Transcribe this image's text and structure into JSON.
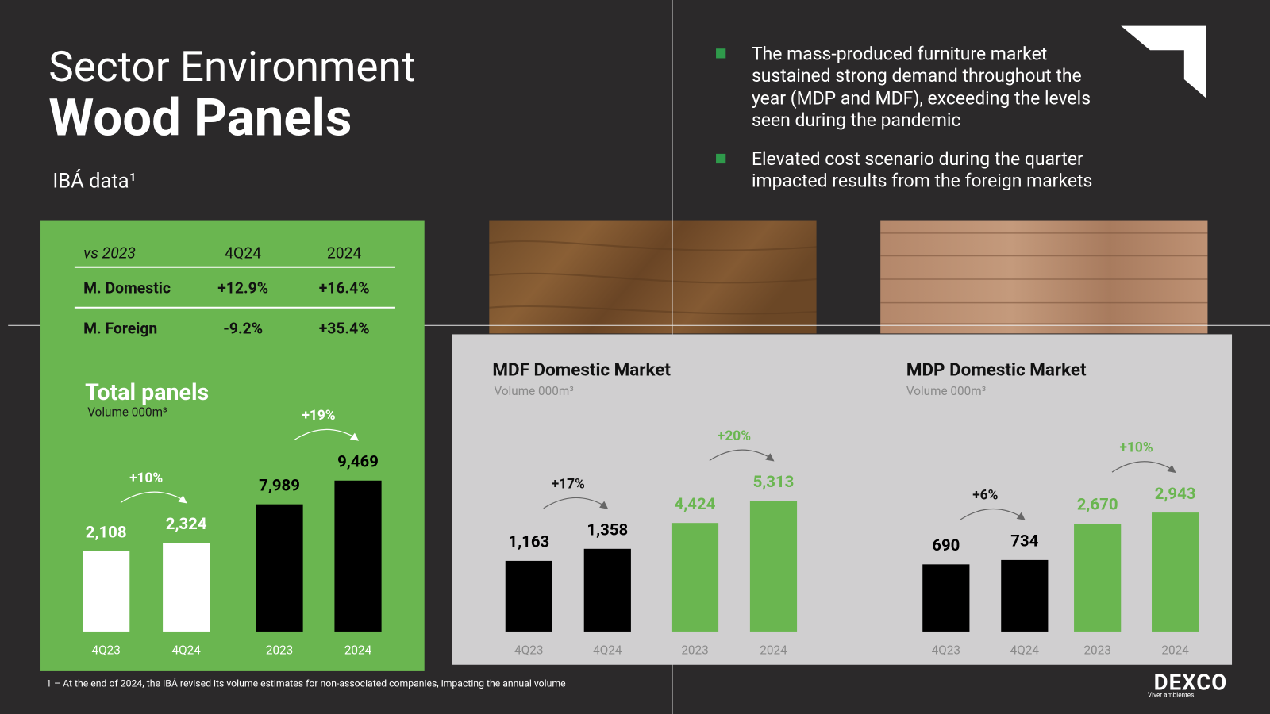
{
  "header": {
    "title": "Sector Environment",
    "subtitle": "Wood Panels",
    "source": "IBÁ data¹"
  },
  "bullets": [
    {
      "lines": [
        "The mass-produced furniture market",
        "sustained strong demand throughout the",
        "year (MDP and MDF), exceeding the levels",
        "seen during the pandemic"
      ]
    },
    {
      "lines": [
        "Elevated cost scenario during the quarter",
        "impacted results from the foreign markets"
      ]
    }
  ],
  "table": {
    "header": [
      "vs 2023",
      "4Q24",
      "2024"
    ],
    "rows": [
      [
        "M. Domestic",
        "+12.9%",
        "+16.4%"
      ],
      [
        "M. Foreign",
        "-9.2%",
        "+35.4%"
      ]
    ]
  },
  "chart_data": [
    {
      "type": "bar",
      "title": "Total panels",
      "subtitle": "Volume 000m³",
      "axis_color": "#ffffff",
      "groups": [
        {
          "categories": [
            "4Q23",
            "4Q24"
          ],
          "values": [
            2108,
            2324
          ],
          "value_labels": [
            "2,108",
            "2,324"
          ],
          "color": "#ffffff",
          "annotation": "+10%",
          "annotation_color": "#ffffff",
          "ylim": [
            0,
            4640
          ]
        },
        {
          "categories": [
            "2023",
            "2024"
          ],
          "values": [
            7989,
            9469
          ],
          "value_labels": [
            "7,989",
            "9,469"
          ],
          "color": "#000000",
          "annotation": "+19%",
          "annotation_color": "#ffffff",
          "ylim": [
            0,
            11120
          ]
        }
      ]
    },
    {
      "type": "bar",
      "title": "MDF Domestic Market",
      "subtitle": "Volume 000m³",
      "axis_color": "#8a8a8a",
      "groups": [
        {
          "categories": [
            "4Q23",
            "4Q24"
          ],
          "values": [
            1163,
            1358
          ],
          "value_labels": [
            "1,163",
            "1,358"
          ],
          "color": "#000000",
          "annotation": "+17%",
          "annotation_color": "#111111",
          "ylim": [
            0,
            2900
          ]
        },
        {
          "categories": [
            "2023",
            "2024"
          ],
          "values": [
            4424,
            5313
          ],
          "value_labels": [
            "4,424",
            "5,313"
          ],
          "color": "#6ab650",
          "annotation": "+20%",
          "annotation_color": "#6ab650",
          "ylim": [
            0,
            7210
          ]
        }
      ]
    },
    {
      "type": "bar",
      "title": "MDP Domestic Market",
      "subtitle": "Volume 000m³",
      "axis_color": "#8a8a8a",
      "groups": [
        {
          "categories": [
            "4Q23",
            "4Q24"
          ],
          "values": [
            690,
            734
          ],
          "value_labels": [
            "690",
            "734"
          ],
          "color": "#000000",
          "annotation": "+6%",
          "annotation_color": "#111111",
          "ylim": [
            0,
            1810
          ]
        },
        {
          "categories": [
            "2023",
            "2024"
          ],
          "values": [
            2670,
            2943
          ],
          "value_labels": [
            "2,670",
            "2,943"
          ],
          "color": "#6ab650",
          "annotation": "+10%",
          "annotation_color": "#6ab650",
          "ylim": [
            0,
            4380
          ]
        }
      ]
    }
  ],
  "footnote": "1 – At the end of 2024, the IBÁ revised its volume estimates for non-associated companies, impacting the annual volume",
  "logo": {
    "name": "DEXCO",
    "tagline": "Viver ambientes."
  }
}
